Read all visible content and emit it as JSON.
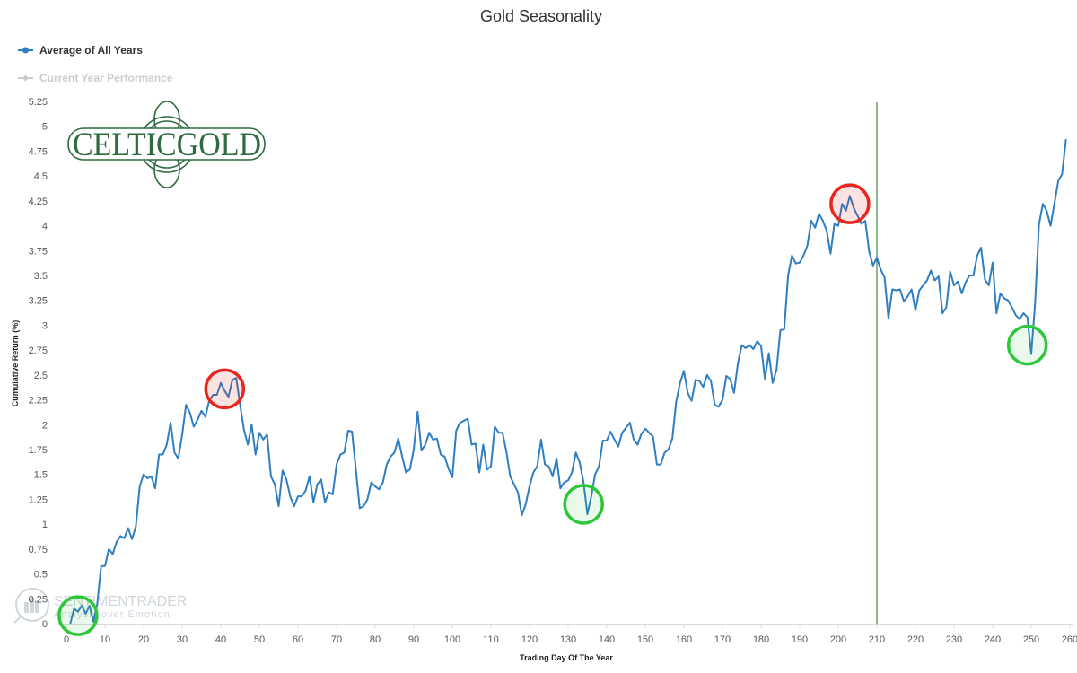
{
  "colors": {
    "series": "#2f7ec1",
    "inactive": "#cccccc",
    "marker_line": "#1d6b2a",
    "peak_circle": "#e8261e",
    "trough_circle": "#2ec73a",
    "logo": "#2e6b3f"
  },
  "logo": {
    "text": "CELTICGOLD"
  },
  "watermark": {
    "text": "SENTIMENTRADER",
    "tagline": "Analysis over Emotion"
  },
  "chart_data": {
    "type": "line",
    "title": "Gold Seasonality",
    "xlabel": "Trading Day Of The Year",
    "ylabel": "Cumulative Return (%)",
    "xlim": [
      -1,
      261
    ],
    "ylim": [
      0,
      5.25
    ],
    "x_ticks": [
      0,
      10,
      20,
      30,
      40,
      50,
      60,
      70,
      80,
      90,
      100,
      110,
      120,
      130,
      140,
      150,
      160,
      170,
      180,
      190,
      200,
      210,
      220,
      230,
      240,
      250,
      260
    ],
    "y_ticks": [
      0,
      0.25,
      0.5,
      0.75,
      1,
      1.25,
      1.5,
      1.75,
      2,
      2.25,
      2.5,
      2.75,
      3,
      3.25,
      3.5,
      3.75,
      4,
      4.25,
      4.5,
      4.75,
      5,
      5.25
    ],
    "y_tick_labels": [
      "0",
      "0.25",
      "0.5",
      "0.75",
      "1",
      "1.25",
      "1.5",
      "1.75",
      "2",
      "2.25",
      "2.5",
      "2.75",
      "3",
      "3.25",
      "3.5",
      "3.75",
      "4",
      "4.25",
      "4.5",
      "4.75",
      "5",
      "5.25"
    ],
    "legend_position": "top-left",
    "grid": false,
    "vertical_marker_x": 210,
    "series": [
      {
        "name": "Average of All Years",
        "active": true,
        "x_start": 1,
        "values": [
          0.0,
          0.15,
          0.12,
          0.18,
          0.1,
          0.18,
          0.02,
          0.2,
          0.58,
          0.58,
          0.75,
          0.7,
          0.82,
          0.88,
          0.86,
          0.96,
          0.85,
          0.98,
          1.38,
          1.5,
          1.46,
          1.48,
          1.36,
          1.7,
          1.7,
          1.8,
          2.02,
          1.72,
          1.66,
          1.9,
          2.2,
          2.12,
          1.98,
          2.05,
          2.14,
          2.08,
          2.24,
          2.3,
          2.3,
          2.42,
          2.34,
          2.28,
          2.45,
          2.47,
          2.2,
          1.95,
          1.8,
          2.0,
          1.7,
          1.92,
          1.85,
          1.9,
          1.48,
          1.4,
          1.18,
          1.54,
          1.45,
          1.28,
          1.18,
          1.28,
          1.28,
          1.34,
          1.48,
          1.22,
          1.4,
          1.45,
          1.22,
          1.32,
          1.3,
          1.6,
          1.7,
          1.72,
          1.94,
          1.93,
          1.55,
          1.16,
          1.18,
          1.25,
          1.42,
          1.38,
          1.35,
          1.42,
          1.6,
          1.68,
          1.72,
          1.86,
          1.68,
          1.52,
          1.55,
          1.75,
          2.13,
          1.74,
          1.8,
          1.92,
          1.85,
          1.86,
          1.7,
          1.68,
          1.56,
          1.47,
          1.94,
          2.02,
          2.04,
          2.06,
          1.8,
          1.81,
          1.52,
          1.8,
          1.55,
          1.58,
          1.98,
          1.92,
          1.92,
          1.73,
          1.48,
          1.4,
          1.32,
          1.09,
          1.2,
          1.38,
          1.52,
          1.58,
          1.85,
          1.6,
          1.58,
          1.48,
          1.66,
          1.36,
          1.42,
          1.44,
          1.52,
          1.72,
          1.62,
          1.42,
          1.1,
          1.28,
          1.5,
          1.58,
          1.84,
          1.84,
          1.93,
          1.85,
          1.78,
          1.92,
          1.97,
          2.02,
          1.85,
          1.8,
          1.91,
          1.96,
          1.92,
          1.88,
          1.6,
          1.6,
          1.72,
          1.75,
          1.86,
          2.23,
          2.42,
          2.54,
          2.32,
          2.24,
          2.45,
          2.44,
          2.38,
          2.5,
          2.44,
          2.2,
          2.18,
          2.25,
          2.49,
          2.46,
          2.32,
          2.62,
          2.8,
          2.77,
          2.8,
          2.76,
          2.84,
          2.79,
          2.46,
          2.72,
          2.42,
          2.55,
          2.95,
          2.96,
          3.5,
          3.7,
          3.62,
          3.63,
          3.7,
          3.8,
          4.05,
          3.98,
          4.12,
          4.05,
          3.95,
          3.72,
          4.02,
          4.0,
          4.22,
          4.15,
          4.3,
          4.18,
          4.1,
          4.02,
          4.05,
          3.74,
          3.6,
          3.68,
          3.56,
          3.48,
          3.07,
          3.36,
          3.35,
          3.36,
          3.24,
          3.29,
          3.36,
          3.15,
          3.35,
          3.4,
          3.45,
          3.55,
          3.45,
          3.49,
          3.12,
          3.18,
          3.54,
          3.4,
          3.44,
          3.32,
          3.43,
          3.5,
          3.5,
          3.7,
          3.78,
          3.46,
          3.4,
          3.63,
          3.12,
          3.32,
          3.27,
          3.25,
          3.18,
          3.1,
          3.06,
          3.12,
          3.08,
          2.71,
          3.22,
          4.01,
          4.22,
          4.15,
          4.0,
          4.22,
          4.45,
          4.52,
          4.87
        ]
      },
      {
        "name": "Current Year Performance",
        "active": false,
        "values": []
      }
    ],
    "annotations": [
      {
        "type": "circle",
        "kind": "trough",
        "x": 3,
        "y": 0.08
      },
      {
        "type": "circle",
        "kind": "peak",
        "x": 41,
        "y": 2.36
      },
      {
        "type": "circle",
        "kind": "trough",
        "x": 134,
        "y": 1.2
      },
      {
        "type": "circle",
        "kind": "peak",
        "x": 203,
        "y": 4.22
      },
      {
        "type": "circle",
        "kind": "trough",
        "x": 249,
        "y": 2.8
      }
    ]
  }
}
